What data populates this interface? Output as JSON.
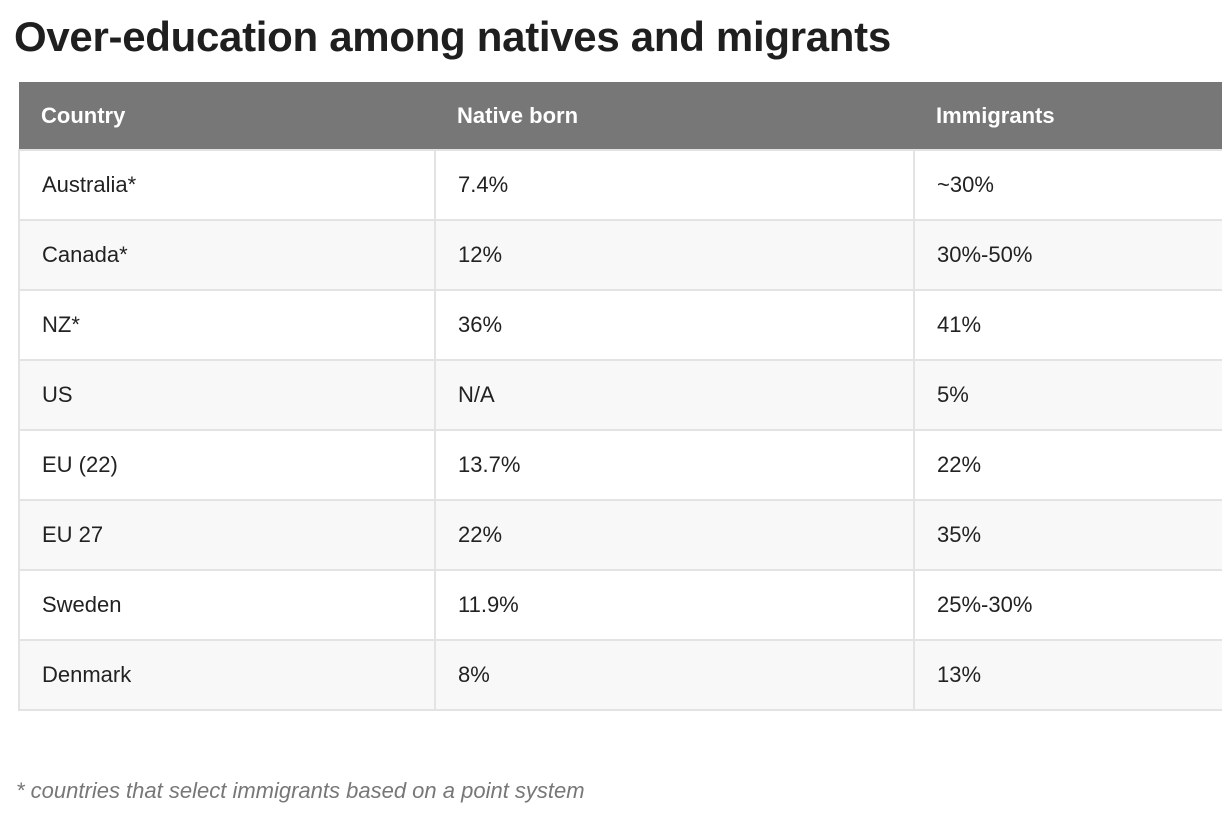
{
  "title": "Over-education among natives and migrants",
  "table": {
    "headers": [
      "Country",
      "Native born",
      "Immigrants"
    ],
    "rows": [
      [
        "Australia*",
        "7.4%",
        "~30%"
      ],
      [
        "Canada*",
        "12%",
        "30%-50%"
      ],
      [
        "NZ*",
        "36%",
        "41%"
      ],
      [
        "US",
        "N/A",
        "5%"
      ],
      [
        "EU (22)",
        "13.7%",
        "22%"
      ],
      [
        "EU 27",
        "22%",
        "35%"
      ],
      [
        "Sweden",
        "11.9%",
        "25%-30%"
      ],
      [
        "Denmark",
        "8%",
        "13%"
      ]
    ]
  },
  "footnote": "* countries that select immigrants based on a point system",
  "colors": {
    "header_bg": "#777777",
    "header_text": "#ffffff",
    "row_alt_bg": "#f8f8f8",
    "footnote_text": "#777777"
  }
}
